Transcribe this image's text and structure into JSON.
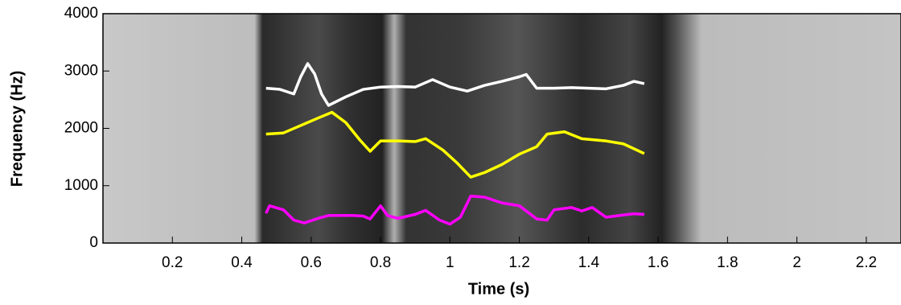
{
  "chart_data": {
    "type": "line",
    "xlabel": "Time (s)",
    "ylabel": "Frequency (Hz)",
    "xlim": [
      0,
      2.3
    ],
    "ylim": [
      0,
      4000
    ],
    "xticks": [
      0.2,
      0.4,
      0.6,
      0.8,
      1,
      1.2,
      1.4,
      1.6,
      1.8,
      2,
      2.2
    ],
    "yticks": [
      0,
      1000,
      2000,
      3000,
      4000
    ],
    "series": [
      {
        "color": "#ffffff",
        "x": [
          0.47,
          0.51,
          0.55,
          0.57,
          0.59,
          0.61,
          0.63,
          0.65,
          0.7,
          0.75,
          0.8,
          0.85,
          0.9,
          0.95,
          1.0,
          1.05,
          1.1,
          1.15,
          1.2,
          1.22,
          1.25,
          1.3,
          1.35,
          1.4,
          1.45,
          1.5,
          1.53,
          1.56
        ],
        "values": [
          2700,
          2680,
          2600,
          2900,
          3130,
          2950,
          2600,
          2400,
          2550,
          2680,
          2720,
          2730,
          2720,
          2850,
          2720,
          2650,
          2750,
          2820,
          2900,
          2940,
          2700,
          2700,
          2710,
          2700,
          2690,
          2750,
          2820,
          2780
        ]
      },
      {
        "color": "#ffff00",
        "x": [
          0.47,
          0.52,
          0.57,
          0.62,
          0.66,
          0.7,
          0.74,
          0.77,
          0.8,
          0.85,
          0.9,
          0.93,
          0.98,
          1.02,
          1.06,
          1.1,
          1.15,
          1.2,
          1.25,
          1.28,
          1.33,
          1.38,
          1.45,
          1.5,
          1.56
        ],
        "values": [
          1900,
          1920,
          2050,
          2180,
          2280,
          2100,
          1800,
          1600,
          1780,
          1780,
          1770,
          1820,
          1620,
          1400,
          1150,
          1230,
          1370,
          1550,
          1680,
          1900,
          1940,
          1820,
          1780,
          1730,
          1560
        ]
      },
      {
        "color": "#ff00ff",
        "x": [
          0.47,
          0.48,
          0.52,
          0.55,
          0.58,
          0.62,
          0.65,
          0.72,
          0.75,
          0.77,
          0.8,
          0.82,
          0.85,
          0.9,
          0.93,
          0.97,
          1.0,
          1.03,
          1.06,
          1.1,
          1.15,
          1.2,
          1.25,
          1.28,
          1.3,
          1.35,
          1.38,
          1.41,
          1.45,
          1.5,
          1.53,
          1.56
        ],
        "values": [
          520,
          650,
          580,
          400,
          350,
          430,
          480,
          480,
          470,
          420,
          650,
          480,
          430,
          500,
          570,
          400,
          330,
          450,
          820,
          800,
          700,
          650,
          420,
          400,
          580,
          620,
          560,
          620,
          450,
          490,
          510,
          500
        ]
      }
    ]
  }
}
